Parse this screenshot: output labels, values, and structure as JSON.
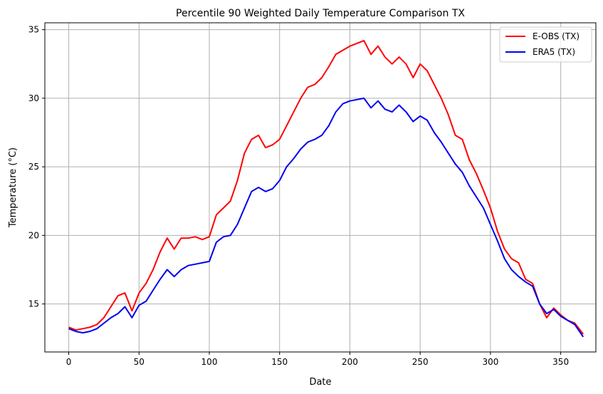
{
  "chart_data": {
    "type": "line",
    "title": "Percentile 90 Weighted Daily Temperature Comparison TX",
    "xlabel": "Date",
    "ylabel": "Temperature (°C)",
    "xlim": [
      -17,
      375
    ],
    "ylim": [
      11.5,
      35.5
    ],
    "xticks": [
      0,
      50,
      100,
      150,
      200,
      250,
      300,
      350
    ],
    "yticks": [
      15,
      20,
      25,
      30,
      35
    ],
    "grid": true,
    "legend_position": "top-right",
    "series": [
      {
        "name": "E-OBS (TX)",
        "color": "#ff0000",
        "points": [
          [
            0,
            13.3
          ],
          [
            5,
            13.1
          ],
          [
            10,
            13.2
          ],
          [
            15,
            13.3
          ],
          [
            20,
            13.5
          ],
          [
            25,
            14.0
          ],
          [
            30,
            14.8
          ],
          [
            35,
            15.6
          ],
          [
            40,
            15.8
          ],
          [
            45,
            14.5
          ],
          [
            50,
            15.8
          ],
          [
            55,
            16.5
          ],
          [
            60,
            17.5
          ],
          [
            65,
            18.8
          ],
          [
            70,
            19.8
          ],
          [
            75,
            19.0
          ],
          [
            80,
            19.8
          ],
          [
            85,
            19.8
          ],
          [
            90,
            19.9
          ],
          [
            95,
            19.7
          ],
          [
            100,
            19.9
          ],
          [
            105,
            21.5
          ],
          [
            110,
            22.0
          ],
          [
            115,
            22.5
          ],
          [
            120,
            24.0
          ],
          [
            125,
            26.0
          ],
          [
            130,
            27.0
          ],
          [
            135,
            27.3
          ],
          [
            140,
            26.4
          ],
          [
            145,
            26.6
          ],
          [
            150,
            27.0
          ],
          [
            155,
            28.0
          ],
          [
            160,
            29.0
          ],
          [
            165,
            30.0
          ],
          [
            170,
            30.8
          ],
          [
            175,
            31.0
          ],
          [
            180,
            31.5
          ],
          [
            185,
            32.3
          ],
          [
            190,
            33.2
          ],
          [
            195,
            33.5
          ],
          [
            200,
            33.8
          ],
          [
            205,
            34.0
          ],
          [
            210,
            34.2
          ],
          [
            215,
            33.2
          ],
          [
            220,
            33.8
          ],
          [
            225,
            33.0
          ],
          [
            230,
            32.5
          ],
          [
            235,
            33.0
          ],
          [
            240,
            32.5
          ],
          [
            245,
            31.5
          ],
          [
            250,
            32.5
          ],
          [
            255,
            32.0
          ],
          [
            260,
            31.0
          ],
          [
            265,
            30.0
          ],
          [
            270,
            28.8
          ],
          [
            275,
            27.3
          ],
          [
            280,
            27.0
          ],
          [
            285,
            25.5
          ],
          [
            290,
            24.5
          ],
          [
            295,
            23.3
          ],
          [
            300,
            22.0
          ],
          [
            305,
            20.3
          ],
          [
            310,
            19.0
          ],
          [
            315,
            18.3
          ],
          [
            320,
            18.0
          ],
          [
            325,
            16.8
          ],
          [
            330,
            16.5
          ],
          [
            335,
            15.0
          ],
          [
            340,
            14.0
          ],
          [
            345,
            14.7
          ],
          [
            350,
            14.2
          ],
          [
            355,
            13.8
          ],
          [
            360,
            13.6
          ],
          [
            366,
            12.8
          ]
        ]
      },
      {
        "name": "ERA5 (TX)",
        "color": "#0000ee",
        "points": [
          [
            0,
            13.2
          ],
          [
            5,
            13.0
          ],
          [
            10,
            12.9
          ],
          [
            15,
            13.0
          ],
          [
            20,
            13.2
          ],
          [
            25,
            13.6
          ],
          [
            30,
            14.0
          ],
          [
            35,
            14.3
          ],
          [
            40,
            14.8
          ],
          [
            45,
            14.0
          ],
          [
            50,
            14.9
          ],
          [
            55,
            15.2
          ],
          [
            60,
            16.0
          ],
          [
            65,
            16.8
          ],
          [
            70,
            17.5
          ],
          [
            75,
            17.0
          ],
          [
            80,
            17.5
          ],
          [
            85,
            17.8
          ],
          [
            90,
            17.9
          ],
          [
            95,
            18.0
          ],
          [
            100,
            18.1
          ],
          [
            105,
            19.5
          ],
          [
            110,
            19.9
          ],
          [
            115,
            20.0
          ],
          [
            120,
            20.8
          ],
          [
            125,
            22.0
          ],
          [
            130,
            23.2
          ],
          [
            135,
            23.5
          ],
          [
            140,
            23.2
          ],
          [
            145,
            23.4
          ],
          [
            150,
            24.0
          ],
          [
            155,
            25.0
          ],
          [
            160,
            25.6
          ],
          [
            165,
            26.3
          ],
          [
            170,
            26.8
          ],
          [
            175,
            27.0
          ],
          [
            180,
            27.3
          ],
          [
            185,
            28.0
          ],
          [
            190,
            29.0
          ],
          [
            195,
            29.6
          ],
          [
            200,
            29.8
          ],
          [
            205,
            29.9
          ],
          [
            210,
            30.0
          ],
          [
            215,
            29.3
          ],
          [
            220,
            29.8
          ],
          [
            225,
            29.2
          ],
          [
            230,
            29.0
          ],
          [
            235,
            29.5
          ],
          [
            240,
            29.0
          ],
          [
            245,
            28.3
          ],
          [
            250,
            28.7
          ],
          [
            255,
            28.4
          ],
          [
            260,
            27.5
          ],
          [
            265,
            26.8
          ],
          [
            270,
            26.0
          ],
          [
            275,
            25.2
          ],
          [
            280,
            24.6
          ],
          [
            285,
            23.6
          ],
          [
            290,
            22.8
          ],
          [
            295,
            22.0
          ],
          [
            300,
            20.8
          ],
          [
            305,
            19.6
          ],
          [
            310,
            18.3
          ],
          [
            315,
            17.5
          ],
          [
            320,
            17.0
          ],
          [
            325,
            16.6
          ],
          [
            330,
            16.3
          ],
          [
            335,
            15.0
          ],
          [
            340,
            14.3
          ],
          [
            345,
            14.6
          ],
          [
            350,
            14.1
          ],
          [
            355,
            13.8
          ],
          [
            360,
            13.5
          ],
          [
            366,
            12.6
          ]
        ]
      }
    ]
  }
}
